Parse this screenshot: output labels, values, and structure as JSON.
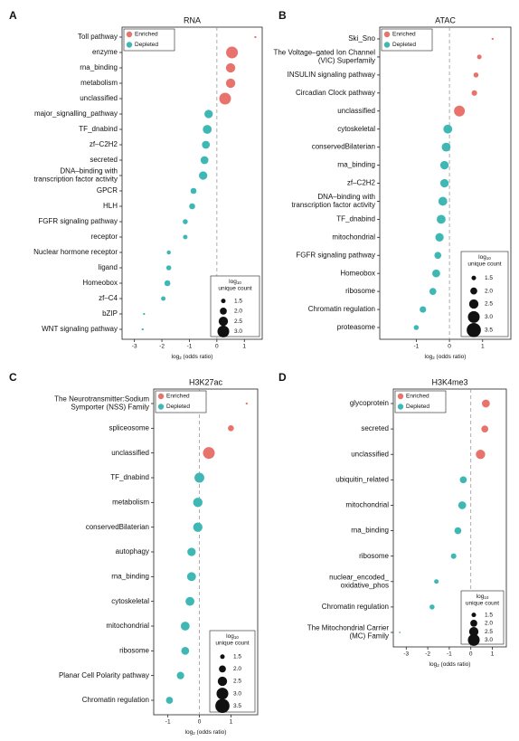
{
  "chart_data": [
    {
      "type": "dot",
      "panel": "A",
      "title": "RNA",
      "xlabel": [
        "log",
        "2",
        " (odds ratio)"
      ],
      "xlim": [
        -3.45,
        1.65
      ],
      "xticks": [
        -3,
        -2,
        -1,
        0,
        1
      ],
      "vline": 0,
      "categories": [
        "Toll pathway",
        "enzyme",
        "rna_binding",
        "metabolism",
        "unclassified",
        "major_signalling_pathway",
        "TF_dnabind",
        "zf–C2H2",
        "secreted",
        "DNA–binding with\ntranscription factor activity",
        "GPCR",
        "HLH",
        "FGFR signaling pathway",
        "receptor",
        "Nuclear hormone receptor",
        "ligand",
        "Homeobox",
        "zf–C4",
        "bZIP",
        "WNT signaling pathway"
      ],
      "series": [
        {
          "name": "Enriched",
          "color": "#e8736c",
          "values": [
            1.4,
            0.55,
            0.5,
            0.5,
            0.3,
            null,
            null,
            null,
            null,
            null,
            null,
            null,
            null,
            null,
            null,
            null,
            null,
            null,
            null,
            null
          ],
          "sizes": [
            1.0,
            3.0,
            2.5,
            2.5,
            3.0,
            null,
            null,
            null,
            null,
            null,
            null,
            null,
            null,
            null,
            null,
            null,
            null,
            null,
            null,
            null
          ]
        },
        {
          "name": "Depleted",
          "color": "#3fb8b5",
          "values": [
            null,
            null,
            null,
            null,
            null,
            -0.3,
            -0.35,
            -0.4,
            -0.45,
            -0.5,
            -0.85,
            -0.9,
            -1.15,
            -1.15,
            -1.75,
            -1.75,
            -1.8,
            -1.95,
            -2.65,
            -2.7
          ],
          "sizes": [
            null,
            null,
            null,
            null,
            null,
            2.3,
            2.4,
            2.2,
            2.2,
            2.3,
            1.8,
            1.8,
            1.6,
            1.5,
            1.4,
            1.6,
            1.8,
            1.5,
            1.0,
            1.0
          ]
        }
      ],
      "size_legend": {
        "title": [
          "log",
          "10",
          "unique count"
        ],
        "values": [
          1.5,
          2.0,
          2.5,
          3.0
        ],
        "labels": [
          "1.5",
          "2.0",
          "2.5",
          "3.0"
        ]
      }
    },
    {
      "type": "dot",
      "panel": "B",
      "title": "ATAC",
      "xlabel": [
        "log",
        "2",
        " (odds ratio)"
      ],
      "xlim": [
        -2.1,
        1.85
      ],
      "xticks": [
        -1,
        0,
        1
      ],
      "vline": 0,
      "categories": [
        "Ski_Sno",
        "The Voltage–gated Ion Channel\n(VIC) Superfamily",
        "INSULIN signaling pathway",
        "Circadian Clock pathway",
        "unclassified",
        "cytoskeletal",
        "conservedBilaterian",
        "rna_binding",
        "zf–C2H2",
        "DNA–binding with\ntranscription factor activity",
        "TF_dnabind",
        "mitochondrial",
        "FGFR signaling pathway",
        "Homeobox",
        "ribosome",
        "Chromatin regulation",
        "proteasome"
      ],
      "series": [
        {
          "name": "Enriched",
          "color": "#e8736c",
          "values": [
            1.3,
            0.9,
            0.8,
            0.75,
            0.3,
            null,
            null,
            null,
            null,
            null,
            null,
            null,
            null,
            null,
            null,
            null,
            null
          ],
          "sizes": [
            1.0,
            1.5,
            1.6,
            1.7,
            2.8,
            null,
            null,
            null,
            null,
            null,
            null,
            null,
            null,
            null,
            null,
            null,
            null
          ]
        },
        {
          "name": "Depleted",
          "color": "#3fb8b5",
          "values": [
            null,
            null,
            null,
            null,
            null,
            -0.05,
            -0.1,
            -0.15,
            -0.15,
            -0.2,
            -0.25,
            -0.3,
            -0.35,
            -0.4,
            -0.5,
            -0.8,
            -1.0
          ],
          "sizes": [
            null,
            null,
            null,
            null,
            null,
            2.4,
            2.4,
            2.3,
            2.3,
            2.4,
            2.4,
            2.3,
            2.0,
            2.2,
            2.0,
            1.9,
            1.6
          ]
        }
      ],
      "size_legend": {
        "title": [
          "log",
          "10",
          "unique count"
        ],
        "values": [
          1.5,
          2.0,
          2.5,
          3.0,
          3.5
        ],
        "labels": [
          "1.5",
          "2.0",
          "2.5",
          "3.0",
          "3.5"
        ]
      }
    },
    {
      "type": "dot",
      "panel": "C",
      "title": "H3K27ac",
      "xlabel": [
        "log",
        "2",
        " (odds ratio)"
      ],
      "xlim": [
        -1.45,
        1.85
      ],
      "xticks": [
        -1,
        0,
        1
      ],
      "vline": 0,
      "categories": [
        "The Neurotransmitter:Sodium\nSymporter (NSS) Family",
        "spliceosome",
        "unclassified",
        "TF_dnabind",
        "metabolism",
        "conservedBilaterian",
        "autophagy",
        "rna_binding",
        "cytoskeletal",
        "mitochondrial",
        "ribosome",
        "Planar Cell Polarity pathway",
        "Chromatin regulation"
      ],
      "series": [
        {
          "name": "Enriched",
          "color": "#e8736c",
          "values": [
            1.5,
            1.0,
            0.3,
            null,
            null,
            null,
            null,
            null,
            null,
            null,
            null,
            null,
            null
          ],
          "sizes": [
            1.0,
            1.8,
            3.0,
            null,
            null,
            null,
            null,
            null,
            null,
            null,
            null,
            null,
            null
          ]
        },
        {
          "name": "Depleted",
          "color": "#3fb8b5",
          "values": [
            null,
            null,
            null,
            0.0,
            -0.05,
            -0.05,
            -0.25,
            -0.25,
            -0.3,
            -0.45,
            -0.45,
            -0.6,
            -0.95
          ],
          "sizes": [
            null,
            null,
            null,
            2.6,
            2.5,
            2.5,
            2.3,
            2.4,
            2.4,
            2.4,
            2.2,
            2.1,
            2.0
          ]
        }
      ],
      "size_legend": {
        "title": [
          "log",
          "10",
          "unique count"
        ],
        "values": [
          1.5,
          2.0,
          2.5,
          3.0,
          3.5
        ],
        "labels": [
          "1.5",
          "2.0",
          "2.5",
          "3.0",
          "3.5"
        ]
      }
    },
    {
      "type": "dot",
      "panel": "D",
      "title": "H3K4me3",
      "xlabel": [
        "log",
        "2",
        " (odds ratio)"
      ],
      "xlim": [
        -3.6,
        1.65
      ],
      "xticks": [
        -3,
        -2,
        -1,
        0,
        1
      ],
      "vline": 0,
      "categories": [
        "glycoprotein",
        "secreted",
        "unclassified",
        "ubiquitin_related",
        "mitochondrial",
        "rna_binding",
        "ribosome",
        "nuclear_encoded_\noxidative_phos",
        "Chromatin regulation",
        "The Mitochondrial Carrier\n(MC) Family"
      ],
      "series": [
        {
          "name": "Enriched",
          "color": "#e8736c",
          "values": [
            0.7,
            0.65,
            0.45,
            null,
            null,
            null,
            null,
            null,
            null,
            null
          ],
          "sizes": [
            2.2,
            2.0,
            2.5,
            null,
            null,
            null,
            null,
            null,
            null,
            null
          ]
        },
        {
          "name": "Depleted",
          "color": "#3fb8b5",
          "values": [
            null,
            null,
            null,
            -0.35,
            -0.4,
            -0.6,
            -0.8,
            -1.6,
            -1.8,
            -3.3
          ],
          "sizes": [
            null,
            null,
            null,
            2.0,
            2.2,
            2.0,
            1.7,
            1.5,
            1.6,
            0.9
          ]
        }
      ],
      "size_legend": {
        "title": [
          "log",
          "10",
          "unique count"
        ],
        "values": [
          1.5,
          2.0,
          2.5,
          3.0
        ],
        "labels": [
          "1.5",
          "2.0",
          "2.5",
          "3.0"
        ]
      }
    }
  ]
}
